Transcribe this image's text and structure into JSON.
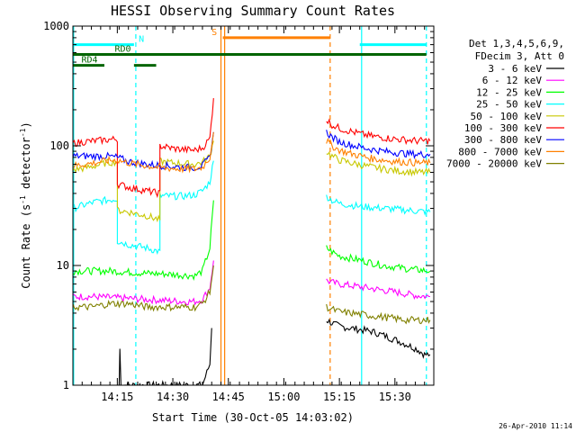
{
  "chart_data": {
    "type": "line",
    "title": "HESSI Observing Summary Count Rates",
    "xlabel": "Start Time (30-Oct-05 14:03:02)",
    "ylabel_main": "Count Rate (s",
    "ylabel_sup1": "-1",
    "ylabel_mid": " detector",
    "ylabel_sup2": "-1",
    "ylabel_end": ")",
    "ylabel": "Count Rate (s-1 detector-1)",
    "yscale": "log",
    "ylim": [
      1,
      1000
    ],
    "xlim_minutes": [
      0,
      97.5
    ],
    "x_ticks": [
      {
        "minute": 12,
        "label": "14:15"
      },
      {
        "minute": 27,
        "label": "14:30"
      },
      {
        "minute": 42,
        "label": "14:45"
      },
      {
        "minute": 57,
        "label": "15:00"
      },
      {
        "minute": 72,
        "label": "15:15"
      },
      {
        "minute": 87,
        "label": "15:30"
      }
    ],
    "y_ticks": [
      {
        "value": 1,
        "label": "1"
      },
      {
        "value": 10,
        "label": "10"
      },
      {
        "value": 100,
        "label": "100"
      },
      {
        "value": 1000,
        "label": "1000"
      }
    ],
    "legend_header": [
      "Det 1,3,4,5,6,9,",
      "FDecim 3, Att 0"
    ],
    "legend_placement": "right",
    "footer_date": "26-Apr-2010 11:14",
    "series": [
      {
        "name": "3 - 6 keV",
        "color": "#000000",
        "segments": [
          {
            "x": [
              12.5,
              12.7,
              13,
              25,
              27,
              31,
              35,
              37,
              37.5
            ],
            "y": [
              1,
              2,
              1,
              1,
              1,
              1,
              1,
              1.5,
              3
            ]
          },
          {
            "x": [
              68.5,
              70,
              72,
              75,
              78,
              81,
              84,
              87,
              90,
              93,
              94,
              95,
              96.5
            ],
            "y": [
              3.5,
              3.3,
              3.1,
              3,
              2.9,
              2.8,
              2.6,
              2.4,
              2.2,
              2,
              1.9,
              1.8,
              1.8
            ]
          }
        ]
      },
      {
        "name": "6 - 12 keV",
        "color": "#ff00ff",
        "segments": [
          {
            "x": [
              0,
              5,
              10,
              15,
              20,
              25,
              30,
              33,
              35,
              37,
              38
            ],
            "y": [
              5.5,
              5.5,
              5.4,
              5.3,
              5.2,
              5.1,
              5,
              5,
              5.2,
              6.5,
              11
            ]
          },
          {
            "x": [
              68.5,
              70,
              72,
              75,
              78,
              81,
              84,
              87,
              90,
              93,
              96.5
            ],
            "y": [
              7.5,
              7.2,
              7,
              6.8,
              6.6,
              6.4,
              6.2,
              6,
              5.8,
              5.6,
              5.5
            ]
          }
        ]
      },
      {
        "name": "12 - 25 keV",
        "color": "#00ff00",
        "segments": [
          {
            "x": [
              0,
              5,
              10,
              15,
              20,
              25,
              30,
              33,
              35,
              37,
              38
            ],
            "y": [
              9,
              9,
              9,
              8.8,
              8.6,
              8.5,
              8.3,
              8.2,
              9,
              14,
              35
            ]
          },
          {
            "x": [
              68.5,
              70,
              72,
              75,
              78,
              81,
              84,
              87,
              90,
              93,
              96.5
            ],
            "y": [
              14,
              13,
              12,
              11.5,
              11,
              10.5,
              10,
              9.7,
              9.4,
              9.2,
              9
            ]
          }
        ]
      },
      {
        "name": "25 - 50 keV",
        "color": "#00ffff",
        "segments": [
          {
            "x": [
              0,
              3,
              6,
              9,
              12,
              12.01,
              15,
              20,
              23.5,
              23.51,
              27,
              30,
              33,
              35,
              37,
              38
            ],
            "y": [
              30,
              32,
              34,
              35,
              36,
              16,
              15,
              14,
              13,
              38,
              38,
              38,
              39,
              42,
              50,
              75
            ]
          },
          {
            "x": [
              68.5,
              70,
              72,
              75,
              78,
              81,
              84,
              87,
              90,
              93,
              96.5
            ],
            "y": [
              38,
              35,
              33,
              32,
              31,
              30.5,
              30,
              29.5,
              29,
              28.5,
              28
            ]
          }
        ]
      },
      {
        "name": "50 - 100 keV",
        "color": "#c8c800",
        "segments": [
          {
            "x": [
              0,
              3,
              6,
              9,
              12,
              12.01,
              15,
              20,
              23.5,
              23.51,
              27,
              30,
              33,
              35,
              37,
              38
            ],
            "y": [
              63,
              65,
              68,
              72,
              74,
              29,
              28,
              26,
              24,
              74,
              72,
              71,
              70,
              73,
              82,
              110
            ]
          },
          {
            "x": [
              68.5,
              70,
              72,
              75,
              78,
              81,
              84,
              87,
              90,
              93,
              96.5
            ],
            "y": [
              90,
              82,
              76,
              72,
              69,
              66,
              64,
              62,
              61,
              60,
              60
            ]
          }
        ]
      },
      {
        "name": "100 - 300 keV",
        "color": "#ff0000",
        "segments": [
          {
            "x": [
              0,
              3,
              6,
              9,
              12,
              12.01,
              15,
              20,
              23.5,
              23.51,
              27,
              30,
              33,
              35,
              37,
              38
            ],
            "y": [
              105,
              108,
              110,
              112,
              114,
              48,
              45,
              42,
              40,
              100,
              95,
              93,
              92,
              96,
              115,
              250
            ]
          },
          {
            "x": [
              68.5,
              70,
              72,
              75,
              78,
              81,
              84,
              87,
              90,
              93,
              96.5
            ],
            "y": [
              165,
              150,
              140,
              132,
              125,
              120,
              117,
              114,
              112,
              110,
              110
            ]
          }
        ]
      },
      {
        "name": "300 - 800 keV",
        "color": "#0000ff",
        "segments": [
          {
            "x": [
              0,
              3,
              6,
              9,
              12,
              15,
              20,
              25,
              30,
              33,
              35,
              37,
              38
            ],
            "y": [
              82,
              82,
              82,
              82,
              80,
              74,
              70,
              68,
              66,
              66,
              68,
              80,
              130
            ]
          },
          {
            "x": [
              68.5,
              70,
              72,
              75,
              78,
              81,
              84,
              87,
              90,
              93,
              96.5
            ],
            "y": [
              130,
              118,
              108,
              102,
              97,
              93,
              90,
              88,
              86,
              85,
              85
            ]
          }
        ]
      },
      {
        "name": "800 - 7000 keV",
        "color": "#ff8000",
        "segments": [
          {
            "x": [
              0,
              3,
              6,
              9,
              12,
              15,
              20,
              25,
              30,
              33,
              35,
              37,
              38
            ],
            "y": [
              68,
              70,
              72,
              75,
              76,
              72,
              68,
              65,
              64,
              64,
              66,
              80,
              130
            ]
          },
          {
            "x": [
              68.5,
              70,
              72,
              75,
              78,
              81,
              84,
              87,
              90,
              93,
              96.5
            ],
            "y": [
              110,
              100,
              92,
              86,
              82,
              78,
              76,
              74,
              73,
              72,
              72
            ]
          }
        ]
      },
      {
        "name": "7000 - 20000 keV",
        "color": "#808000",
        "segments": [
          {
            "x": [
              0,
              5,
              10,
              15,
              20,
              25,
              30,
              33,
              35,
              37,
              38
            ],
            "y": [
              4.5,
              4.5,
              4.8,
              4.8,
              4.5,
              4.5,
              4.5,
              4.5,
              4.8,
              6,
              10
            ]
          },
          {
            "x": [
              68.5,
              70,
              72,
              75,
              78,
              81,
              84,
              87,
              90,
              93,
              96.5
            ],
            "y": [
              4.5,
              4.3,
              4.1,
              4,
              3.9,
              3.8,
              3.7,
              3.6,
              3.5,
              3.5,
              3.5
            ]
          }
        ]
      }
    ],
    "bars": [
      {
        "label": "N",
        "color": "#00ffff",
        "y_value": 700,
        "segments": [
          [
            0,
            16.5
          ],
          [
            77.5,
            95.5
          ]
        ],
        "label_minute": 18.5
      },
      {
        "label": "S",
        "color": "#ff8000",
        "y_value": 800,
        "segments": [
          [
            40.5,
            69.5
          ]
        ],
        "label_minute": 38.2
      },
      {
        "label": "RD0",
        "color": "#006400",
        "y_value": 580,
        "segments": [
          [
            0,
            95.5
          ]
        ],
        "label_minute": 13.5
      },
      {
        "label": "RD4",
        "color": "#006400",
        "y_value": 470,
        "segments": [
          [
            0,
            8.5
          ],
          [
            16.5,
            22.5
          ]
        ],
        "label_minute": 4.5
      }
    ],
    "vlines": [
      {
        "minute": 17,
        "color": "#00ffff",
        "style": "dashed"
      },
      {
        "minute": 40,
        "color": "#ff8000",
        "style": "solid"
      },
      {
        "minute": 41,
        "color": "#ff8000",
        "style": "solid"
      },
      {
        "minute": 69.5,
        "color": "#ff8000",
        "style": "dashed"
      },
      {
        "minute": 78,
        "color": "#00ffff",
        "style": "solid"
      },
      {
        "minute": 95.5,
        "color": "#00ffff",
        "style": "dashed"
      },
      {
        "minute": 0.2,
        "color": "#00ffff",
        "style": "solid"
      }
    ]
  }
}
